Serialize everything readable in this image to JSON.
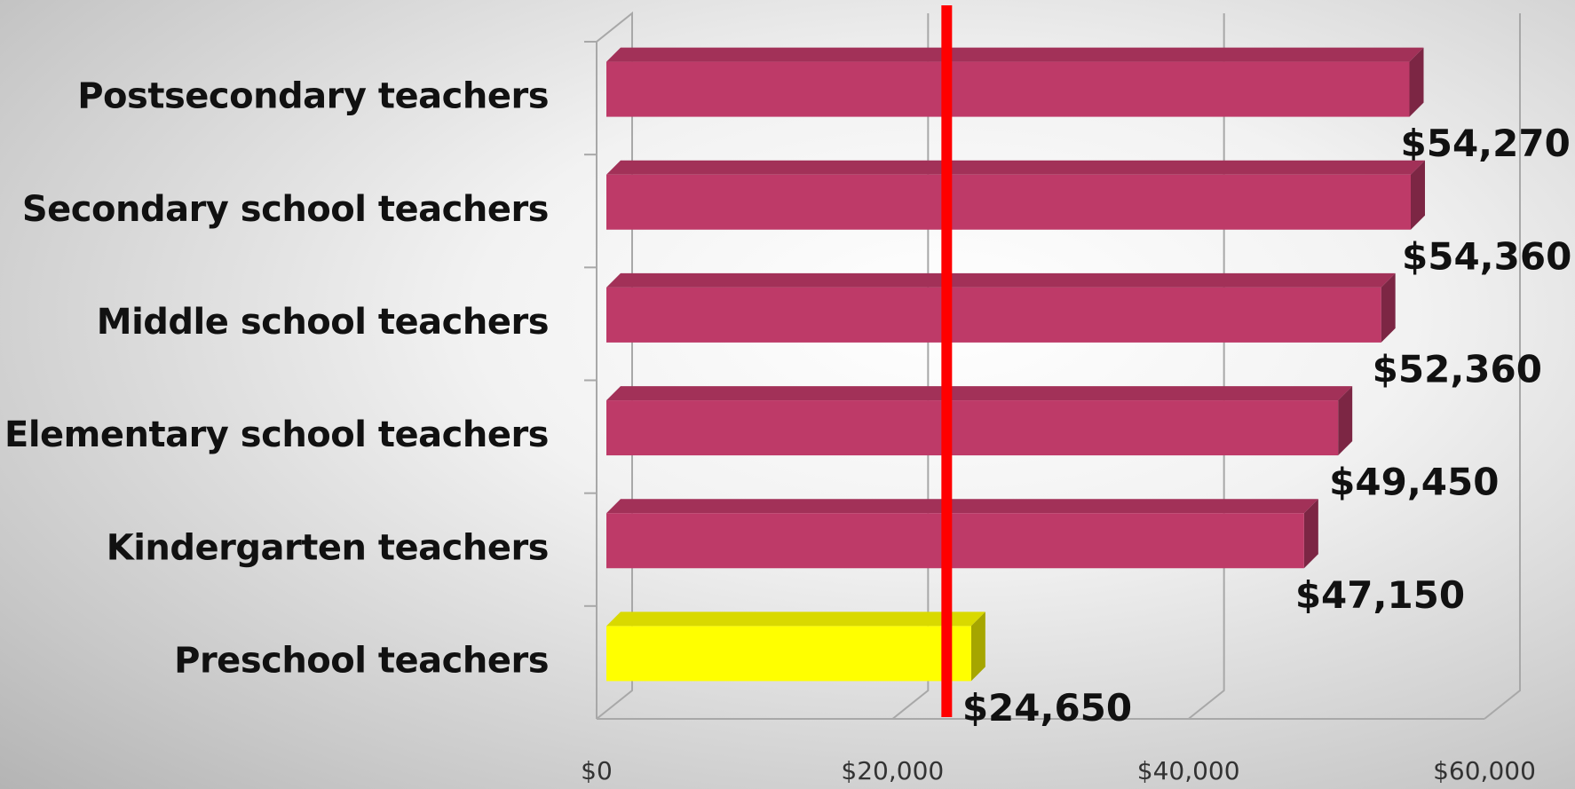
{
  "chart_data": {
    "type": "bar3d_horizontal",
    "categories": [
      "Postsecondary teachers",
      "Secondary school teachers",
      "Middle school teachers",
      "Elementary school teachers",
      "Kindergarten teachers",
      "Preschool teachers"
    ],
    "values": [
      54270,
      54360,
      52360,
      49450,
      47150,
      24650
    ],
    "value_labels": [
      "$54,270",
      "$54,360",
      "$52,360",
      "$49,450",
      "$47,150",
      "$24,650"
    ],
    "colors": [
      "#be3a68",
      "#be3a68",
      "#be3a68",
      "#be3a68",
      "#be3a68",
      "#ffff00"
    ],
    "xlim": [
      0,
      60000
    ],
    "xticks": [
      {
        "value": 0,
        "label": "$0"
      },
      {
        "value": 20000,
        "label": "$20,000"
      },
      {
        "value": 40000,
        "label": "$40,000"
      },
      {
        "value": 60000,
        "label": "$60,000"
      }
    ],
    "grid": true,
    "reference_line": {
      "value": 23000,
      "color": "#ff0000"
    }
  }
}
